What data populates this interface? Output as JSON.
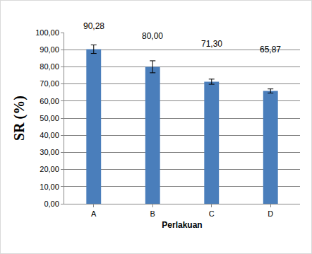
{
  "chart_data": {
    "type": "bar",
    "x_label": "Perlakuan",
    "y_label": "SR (%)",
    "categories": [
      "A",
      "B",
      "C",
      "D"
    ],
    "values": [
      90.28,
      80.0,
      71.3,
      65.87
    ],
    "value_labels": [
      "90,28",
      "80,00",
      "71,30",
      "65,87"
    ],
    "errors": [
      2.5,
      3.5,
      1.5,
      1.2
    ],
    "color": "#4a7ebb",
    "ylim": [
      0,
      100
    ],
    "yticks": [
      {
        "value": 0,
        "label": "0,00"
      },
      {
        "value": 10,
        "label": "10,00"
      },
      {
        "value": 20,
        "label": "20,00"
      },
      {
        "value": 30,
        "label": "30,00"
      },
      {
        "value": 40,
        "label": "40,00"
      },
      {
        "value": 50,
        "label": "50,00"
      },
      {
        "value": 60,
        "label": "60,00"
      },
      {
        "value": 70,
        "label": "70,00"
      },
      {
        "value": 80,
        "label": "80,00"
      },
      {
        "value": 90,
        "label": "90,00"
      },
      {
        "value": 100,
        "label": "100,00"
      }
    ],
    "grid": true,
    "data_labels": true
  }
}
